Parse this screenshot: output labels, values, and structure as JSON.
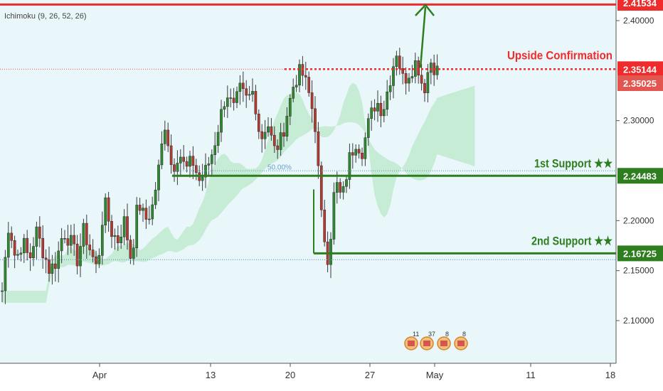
{
  "chart_data": {
    "type": "candlestick",
    "indicator_label": "Ichimoku (9, 26, 52, 26)",
    "x_tick_labels": [
      "Apr",
      "13",
      "20",
      "27",
      "May",
      "11",
      "18"
    ],
    "y_tick_labels": [
      "2.40000",
      "2.30000",
      "2.20000",
      "2.15000",
      "2.10000"
    ],
    "y_tick_values": [
      2.4,
      2.3,
      2.2,
      2.15,
      2.1
    ],
    "ylim": [
      2.065,
      2.42
    ],
    "price_badges": [
      {
        "label": "2.41534",
        "value": 2.41534,
        "color": "#ef2b2b"
      },
      {
        "label": "2.35144",
        "value": 2.35144,
        "color": "#ef2b2b"
      },
      {
        "label": "2.35025",
        "value": 2.35025,
        "color": "#e3564f"
      },
      {
        "label": "2.24483",
        "value": 2.24483,
        "color": "#2e7d1e"
      },
      {
        "label": "2.16725",
        "value": 2.16725,
        "color": "#2e7d1e"
      }
    ],
    "levels": [
      {
        "name": "Upside Confirmation",
        "value": 2.35144,
        "color": "#ef2b2b"
      },
      {
        "name": "1st Support ★★",
        "value": 2.24483,
        "color": "#2e7d1e"
      },
      {
        "name": "2nd Support ★★",
        "value": 2.16725,
        "color": "#2e7d1e"
      }
    ],
    "fib_label": "50.00%",
    "event_counts": [
      "11",
      "37",
      "8",
      "8"
    ],
    "close_path": [
      2.13,
      2.2,
      2.16,
      2.18,
      2.16,
      2.19,
      2.17,
      2.15,
      2.16,
      2.19,
      2.18,
      2.16,
      2.19,
      2.17,
      2.15,
      2.22,
      2.19,
      2.18,
      2.2,
      2.16,
      2.22,
      2.2,
      2.21,
      2.25,
      2.3,
      2.25,
      2.27,
      2.25,
      2.26,
      2.24,
      2.25,
      2.27,
      2.3,
      2.33,
      2.31,
      2.33,
      2.32,
      2.33,
      2.28,
      2.3,
      2.27,
      2.28,
      2.31,
      2.34,
      2.35,
      2.33,
      2.3,
      2.2,
      2.16,
      2.24,
      2.22,
      2.26,
      2.28,
      2.27,
      2.3,
      2.32,
      2.31,
      2.34,
      2.37,
      2.34,
      2.35,
      2.36,
      2.33,
      2.36,
      2.35
    ]
  }
}
